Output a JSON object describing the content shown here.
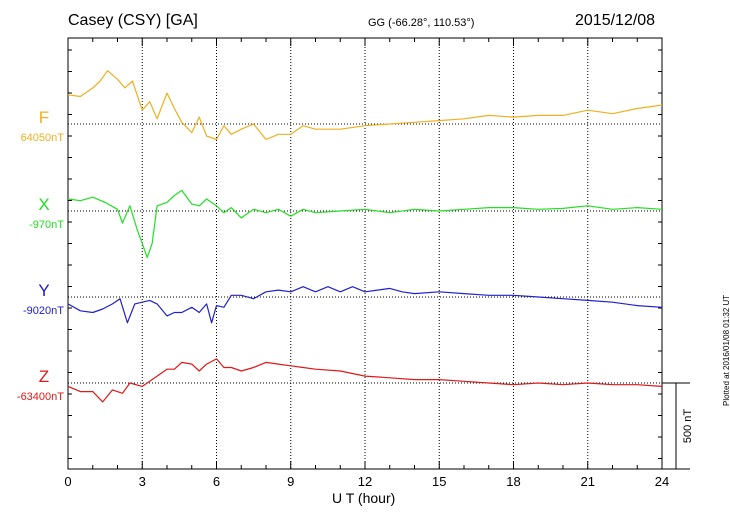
{
  "header": {
    "station": "Casey (CSY)  [GA]",
    "coords": "GG (-66.28°, 110.53°)",
    "date": "2015/12/08"
  },
  "footer": {
    "plotted": "Plotted at 2016/01/08 01:32 UT"
  },
  "chart_data": {
    "type": "line",
    "title": "Casey (CSY)  [GA]",
    "xlabel": "U T (hour)",
    "xlim": [
      0,
      24
    ],
    "xticks": [
      0,
      3,
      6,
      9,
      12,
      15,
      18,
      21,
      24
    ],
    "grid": true,
    "scale_bar": "500 nT",
    "series": [
      {
        "name": "F",
        "baseline_label": "64050nT",
        "baseline": 64050,
        "color": "#f0b020",
        "points": [
          [
            0,
            64220
          ],
          [
            0.5,
            64210
          ],
          [
            1,
            64260
          ],
          [
            1.3,
            64300
          ],
          [
            1.6,
            64360
          ],
          [
            2,
            64310
          ],
          [
            2.3,
            64260
          ],
          [
            2.6,
            64300
          ],
          [
            3,
            64130
          ],
          [
            3.3,
            64180
          ],
          [
            3.6,
            64080
          ],
          [
            4,
            64230
          ],
          [
            4.3,
            64140
          ],
          [
            4.6,
            64060
          ],
          [
            5,
            64000
          ],
          [
            5.3,
            64090
          ],
          [
            5.6,
            63980
          ],
          [
            6,
            63960
          ],
          [
            6.3,
            64040
          ],
          [
            6.6,
            63990
          ],
          [
            7,
            64020
          ],
          [
            7.5,
            64050
          ],
          [
            8,
            63960
          ],
          [
            8.5,
            63990
          ],
          [
            9,
            63990
          ],
          [
            9.5,
            64040
          ],
          [
            10,
            64020
          ],
          [
            11,
            64020
          ],
          [
            12,
            64040
          ],
          [
            13,
            64050
          ],
          [
            14,
            64060
          ],
          [
            15,
            64070
          ],
          [
            16,
            64080
          ],
          [
            17,
            64100
          ],
          [
            18,
            64090
          ],
          [
            19,
            64100
          ],
          [
            20,
            64100
          ],
          [
            21,
            64130
          ],
          [
            22,
            64110
          ],
          [
            23,
            64140
          ],
          [
            24,
            64160
          ]
        ]
      },
      {
        "name": "X",
        "baseline_label": "-970nT",
        "baseline": -970,
        "color": "#22e022",
        "points": [
          [
            0,
            -900
          ],
          [
            0.5,
            -910
          ],
          [
            1,
            -890
          ],
          [
            1.5,
            -920
          ],
          [
            2,
            -960
          ],
          [
            2.2,
            -1040
          ],
          [
            2.5,
            -940
          ],
          [
            2.8,
            -1080
          ],
          [
            3,
            -1160
          ],
          [
            3.2,
            -1240
          ],
          [
            3.4,
            -1160
          ],
          [
            3.6,
            -940
          ],
          [
            4,
            -920
          ],
          [
            4.3,
            -880
          ],
          [
            4.6,
            -850
          ],
          [
            5,
            -930
          ],
          [
            5.3,
            -940
          ],
          [
            5.6,
            -900
          ],
          [
            6,
            -940
          ],
          [
            6.3,
            -980
          ],
          [
            6.6,
            -950
          ],
          [
            7,
            -1010
          ],
          [
            7.5,
            -960
          ],
          [
            8,
            -980
          ],
          [
            8.5,
            -960
          ],
          [
            9,
            -1000
          ],
          [
            9.5,
            -960
          ],
          [
            10,
            -980
          ],
          [
            11,
            -970
          ],
          [
            12,
            -960
          ],
          [
            13,
            -980
          ],
          [
            14,
            -960
          ],
          [
            15,
            -970
          ],
          [
            16,
            -960
          ],
          [
            17,
            -950
          ],
          [
            18,
            -950
          ],
          [
            19,
            -960
          ],
          [
            20,
            -955
          ],
          [
            21,
            -940
          ],
          [
            22,
            -960
          ],
          [
            23,
            -950
          ],
          [
            24,
            -960
          ]
        ]
      },
      {
        "name": "Y",
        "baseline_label": "-9020nT",
        "baseline": -9020,
        "color": "#2020d0",
        "points": [
          [
            0,
            -9060
          ],
          [
            0.5,
            -9100
          ],
          [
            1,
            -9110
          ],
          [
            1.4,
            -9090
          ],
          [
            1.8,
            -9060
          ],
          [
            2.1,
            -9030
          ],
          [
            2.4,
            -9170
          ],
          [
            2.7,
            -9060
          ],
          [
            3,
            -9050
          ],
          [
            3.3,
            -9040
          ],
          [
            3.6,
            -9060
          ],
          [
            4,
            -9130
          ],
          [
            4.3,
            -9110
          ],
          [
            4.6,
            -9110
          ],
          [
            5,
            -9080
          ],
          [
            5.3,
            -9110
          ],
          [
            5.6,
            -9060
          ],
          [
            5.8,
            -9170
          ],
          [
            6,
            -9070
          ],
          [
            6.3,
            -9080
          ],
          [
            6.6,
            -9010
          ],
          [
            7,
            -9010
          ],
          [
            7.5,
            -9030
          ],
          [
            8,
            -8990
          ],
          [
            8.5,
            -8980
          ],
          [
            9,
            -8990
          ],
          [
            9.5,
            -8960
          ],
          [
            10,
            -8990
          ],
          [
            10.5,
            -8960
          ],
          [
            11,
            -8990
          ],
          [
            11.5,
            -8960
          ],
          [
            12,
            -8990
          ],
          [
            12.5,
            -8980
          ],
          [
            13,
            -8970
          ],
          [
            13.5,
            -8990
          ],
          [
            14,
            -9000
          ],
          [
            15,
            -8990
          ],
          [
            16,
            -9000
          ],
          [
            17,
            -9010
          ],
          [
            18,
            -9010
          ],
          [
            19,
            -9020
          ],
          [
            20,
            -9030
          ],
          [
            21,
            -9040
          ],
          [
            22,
            -9050
          ],
          [
            23,
            -9070
          ],
          [
            24,
            -9080
          ]
        ]
      },
      {
        "name": "Z",
        "baseline_label": "-63400nT",
        "baseline": -63400,
        "color": "#e01818",
        "points": [
          [
            0,
            -63420
          ],
          [
            0.5,
            -63450
          ],
          [
            1,
            -63450
          ],
          [
            1.4,
            -63510
          ],
          [
            1.8,
            -63440
          ],
          [
            2.2,
            -63460
          ],
          [
            2.5,
            -63400
          ],
          [
            3,
            -63420
          ],
          [
            3.3,
            -63390
          ],
          [
            3.6,
            -63360
          ],
          [
            4,
            -63320
          ],
          [
            4.3,
            -63320
          ],
          [
            4.6,
            -63280
          ],
          [
            5,
            -63290
          ],
          [
            5.3,
            -63330
          ],
          [
            5.6,
            -63290
          ],
          [
            6,
            -63260
          ],
          [
            6.3,
            -63310
          ],
          [
            6.6,
            -63310
          ],
          [
            7,
            -63330
          ],
          [
            7.5,
            -63310
          ],
          [
            8,
            -63280
          ],
          [
            8.5,
            -63290
          ],
          [
            9,
            -63300
          ],
          [
            9.5,
            -63310
          ],
          [
            10,
            -63320
          ],
          [
            11,
            -63330
          ],
          [
            12,
            -63360
          ],
          [
            13,
            -63370
          ],
          [
            14,
            -63380
          ],
          [
            15,
            -63380
          ],
          [
            16,
            -63390
          ],
          [
            17,
            -63400
          ],
          [
            18,
            -63410
          ],
          [
            19,
            -63400
          ],
          [
            20,
            -63410
          ],
          [
            21,
            -63400
          ],
          [
            22,
            -63410
          ],
          [
            23,
            -63410
          ],
          [
            24,
            -63420
          ]
        ]
      }
    ]
  }
}
